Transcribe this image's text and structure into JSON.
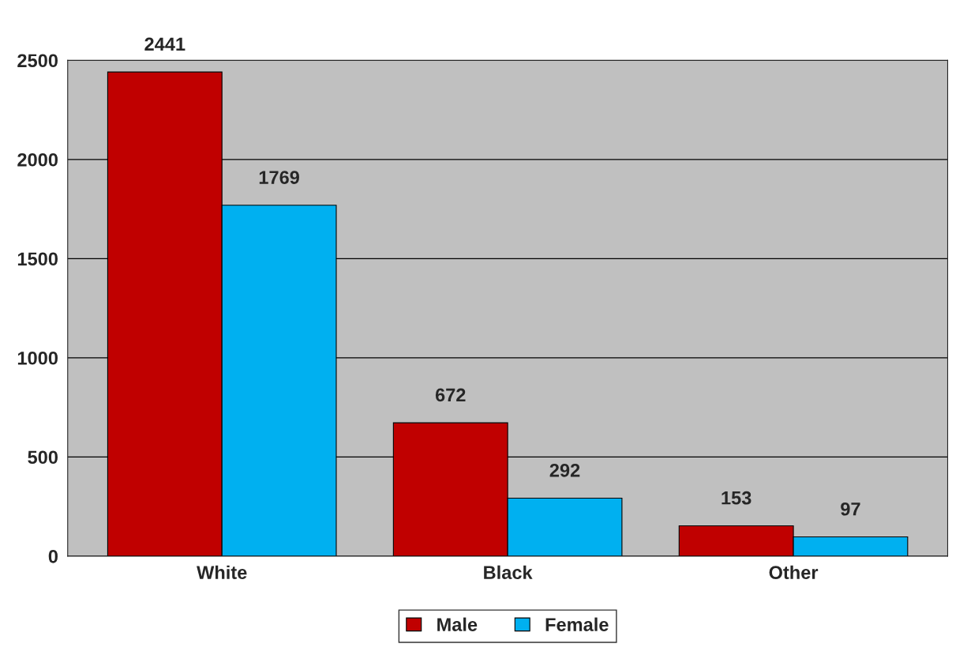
{
  "chart_data": {
    "type": "bar",
    "categories": [
      "White",
      "Black",
      "Other"
    ],
    "series": [
      {
        "name": "Male",
        "color": "#c00000",
        "values": [
          2441,
          672,
          153
        ]
      },
      {
        "name": "Female",
        "color": "#00b0f0",
        "values": [
          1769,
          292,
          97
        ]
      }
    ],
    "ylim": [
      0,
      2500
    ],
    "yticks": [
      0,
      500,
      1000,
      1500,
      2000,
      2500
    ],
    "grid": "y",
    "legend": "bottom",
    "data_labels": true
  }
}
